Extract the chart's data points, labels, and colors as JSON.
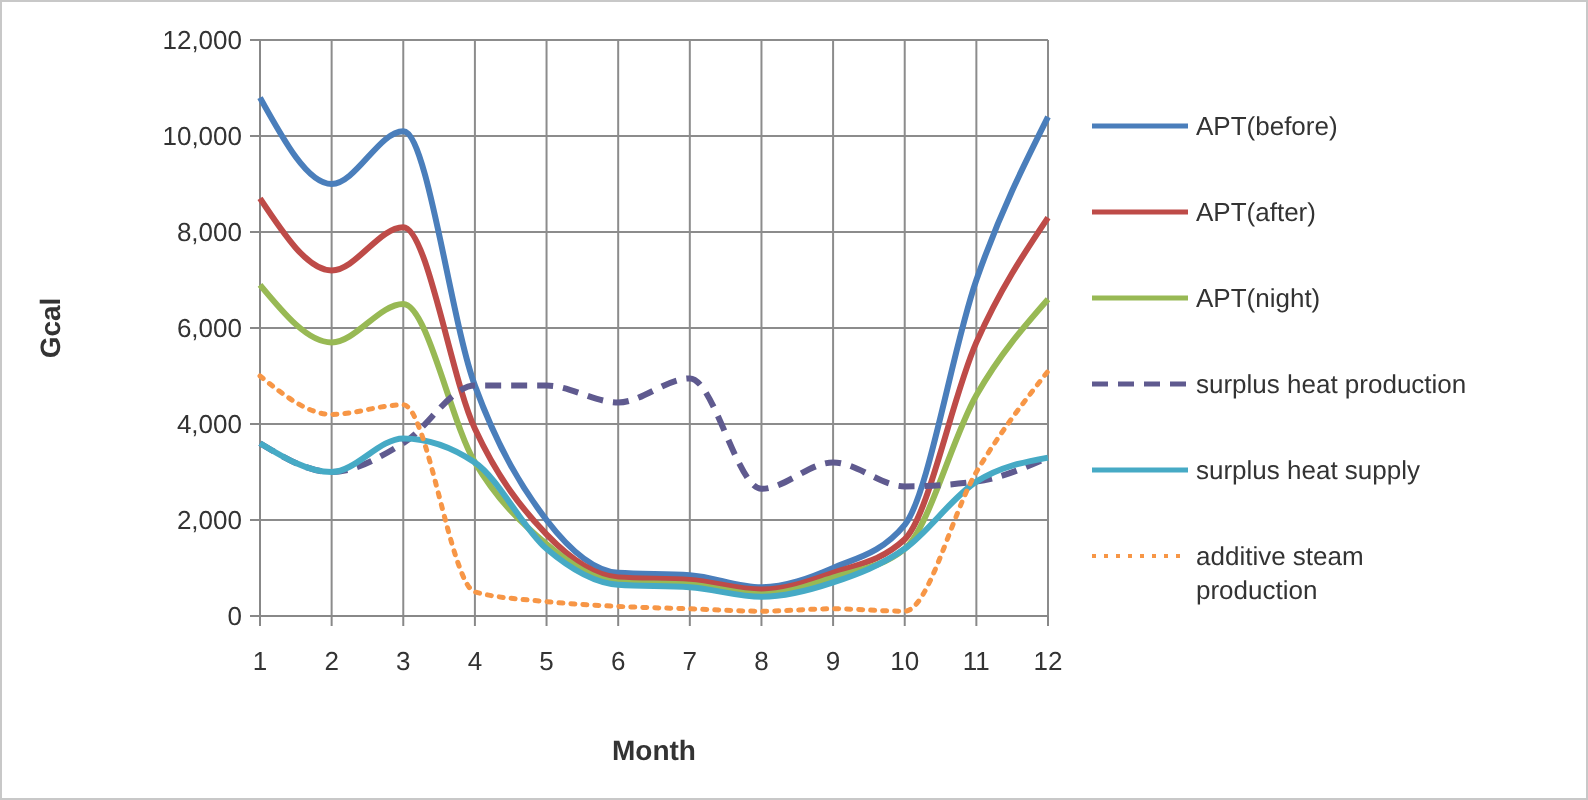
{
  "chart_data": {
    "type": "line",
    "xlabel": "Month",
    "ylabel": "Gcal",
    "x": [
      1,
      2,
      3,
      4,
      5,
      6,
      7,
      8,
      9,
      10,
      11,
      12
    ],
    "xlim": [
      1,
      12
    ],
    "xticks": [
      1,
      2,
      3,
      4,
      5,
      6,
      7,
      8,
      9,
      10,
      11,
      12
    ],
    "ylim": [
      0,
      12000
    ],
    "yticks": [
      {
        "value": 0,
        "label": "0"
      },
      {
        "value": 2000,
        "label": "2,000"
      },
      {
        "value": 4000,
        "label": "4,000"
      },
      {
        "value": 6000,
        "label": "6,000"
      },
      {
        "value": 8000,
        "label": "8,000"
      },
      {
        "value": 10000,
        "label": "10,000"
      },
      {
        "value": 12000,
        "label": "12,000"
      }
    ],
    "grid": true,
    "legend": "right",
    "series": [
      {
        "name": "APT(before)",
        "color": "#4a7ebb",
        "line_style": "solid",
        "values": [
          10800,
          9000,
          10100,
          4800,
          2000,
          900,
          850,
          600,
          1000,
          1900,
          7000,
          10400
        ]
      },
      {
        "name": "APT(after)",
        "color": "#be4b48",
        "line_style": "solid",
        "values": [
          8700,
          7200,
          8100,
          3900,
          1700,
          800,
          750,
          550,
          900,
          1600,
          5700,
          8300
        ]
      },
      {
        "name": "APT(night)",
        "color": "#98b954",
        "line_style": "solid",
        "values": [
          6900,
          5700,
          6500,
          3200,
          1500,
          700,
          650,
          450,
          800,
          1400,
          4600,
          6600
        ]
      },
      {
        "name": "surplus heat production",
        "color": "#5f5a8f",
        "line_style": "dashed",
        "values": [
          3600,
          3000,
          3600,
          4800,
          4800,
          4450,
          4950,
          2650,
          3200,
          2700,
          2800,
          3300
        ]
      },
      {
        "name": "surplus heat supply",
        "color": "#46aac5",
        "line_style": "solid",
        "values": [
          3600,
          3000,
          3700,
          3200,
          1400,
          650,
          600,
          400,
          700,
          1400,
          2800,
          3300
        ]
      },
      {
        "name": "additive steam production",
        "color": "#f79646",
        "line_style": "dotted",
        "values": [
          5000,
          4200,
          4400,
          500,
          300,
          200,
          150,
          100,
          150,
          100,
          3000,
          5100
        ]
      }
    ]
  }
}
